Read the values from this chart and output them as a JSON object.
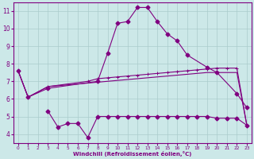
{
  "xlabel": "Windchill (Refroidissement éolien,°C)",
  "line_color": "#800080",
  "bg_color": "#cce8e8",
  "grid_color": "#aacccc",
  "ylim": [
    3.5,
    11.5
  ],
  "xlim": [
    -0.5,
    23.5
  ],
  "yticks": [
    4,
    5,
    6,
    7,
    8,
    9,
    10,
    11
  ],
  "xticks": [
    0,
    1,
    2,
    3,
    4,
    5,
    6,
    7,
    8,
    9,
    10,
    11,
    12,
    13,
    14,
    15,
    16,
    17,
    18,
    19,
    20,
    21,
    22,
    23
  ],
  "curve1_x": [
    0,
    1,
    3,
    8,
    9,
    10,
    11,
    12,
    13,
    14,
    15,
    16,
    17,
    19,
    20,
    22,
    23
  ],
  "curve1_y": [
    7.6,
    6.1,
    6.6,
    7.0,
    8.6,
    10.3,
    10.4,
    11.2,
    11.2,
    10.4,
    9.7,
    9.3,
    8.5,
    7.8,
    7.5,
    6.3,
    5.5
  ],
  "curve2_x": [
    0,
    1,
    3,
    7,
    8,
    9,
    10,
    11,
    12,
    13,
    14,
    15,
    16,
    17,
    18,
    19,
    20,
    21,
    22,
    23
  ],
  "curve2_y": [
    7.6,
    6.1,
    6.7,
    7.0,
    7.15,
    7.2,
    7.25,
    7.3,
    7.35,
    7.4,
    7.45,
    7.5,
    7.55,
    7.6,
    7.65,
    7.7,
    7.75,
    7.75,
    7.75,
    4.5
  ],
  "curve3_x": [
    0,
    1,
    3,
    7,
    8,
    9,
    10,
    11,
    12,
    13,
    14,
    15,
    16,
    17,
    18,
    19,
    20,
    21,
    22,
    23
  ],
  "curve3_y": [
    7.6,
    6.1,
    6.7,
    6.9,
    6.95,
    7.0,
    7.05,
    7.1,
    7.15,
    7.2,
    7.25,
    7.3,
    7.35,
    7.4,
    7.45,
    7.5,
    7.5,
    7.5,
    7.5,
    4.5
  ],
  "curve4_x": [
    3,
    4,
    5,
    6,
    7,
    8,
    9,
    10,
    11,
    12,
    13,
    14,
    15,
    16,
    17,
    18,
    19,
    20,
    21,
    22,
    23
  ],
  "curve4_y": [
    5.3,
    4.4,
    4.6,
    4.6,
    3.8,
    5.0,
    5.0,
    5.0,
    5.0,
    5.0,
    5.0,
    5.0,
    5.0,
    5.0,
    5.0,
    5.0,
    5.0,
    4.9,
    4.9,
    4.9,
    4.5
  ]
}
